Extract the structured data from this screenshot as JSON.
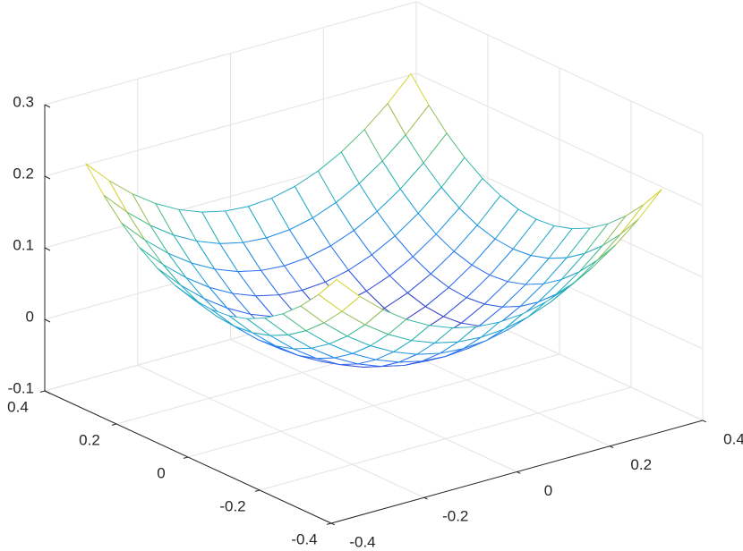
{
  "chart_data": {
    "type": "mesh",
    "colormap": "parula",
    "grid": true,
    "x": [
      -0.35,
      -0.3,
      -0.25,
      -0.2,
      -0.15,
      -0.1,
      -0.05,
      0,
      0.05,
      0.1,
      0.15,
      0.2,
      0.25,
      0.3,
      0.35
    ],
    "y": [
      -0.35,
      -0.3,
      -0.25,
      -0.2,
      -0.15,
      -0.1,
      -0.05,
      0,
      0.05,
      0.1,
      0.15,
      0.2,
      0.25,
      0.3,
      0.35
    ],
    "z": [
      [
        0.22,
        0.1875,
        0.16,
        0.1375,
        0.12,
        0.1075,
        0.1,
        0.0975,
        0.1,
        0.1075,
        0.12,
        0.1375,
        0.16,
        0.1875,
        0.22
      ],
      [
        0.1875,
        0.155,
        0.1275,
        0.105,
        0.0875,
        0.075,
        0.0675,
        0.065,
        0.0675,
        0.075,
        0.0875,
        0.105,
        0.1275,
        0.155,
        0.1875
      ],
      [
        0.16,
        0.1275,
        0.1,
        0.0775,
        0.06,
        0.0475,
        0.04,
        0.0375,
        0.04,
        0.0475,
        0.06,
        0.0775,
        0.1,
        0.1275,
        0.16
      ],
      [
        0.1375,
        0.105,
        0.0775,
        0.055,
        0.0375,
        0.025,
        0.0175,
        0.015,
        0.0175,
        0.025,
        0.0375,
        0.055,
        0.0775,
        0.105,
        0.1375
      ],
      [
        0.12,
        0.0875,
        0.06,
        0.0375,
        0.02,
        0.0075,
        0,
        -0.0025,
        0,
        0.0075,
        0.02,
        0.0375,
        0.06,
        0.0875,
        0.12
      ],
      [
        0.1075,
        0.075,
        0.0475,
        0.025,
        0.0075,
        -0.005,
        -0.0125,
        -0.015,
        -0.0125,
        -0.005,
        0.0075,
        0.025,
        0.0475,
        0.075,
        0.1075
      ],
      [
        0.1,
        0.0675,
        0.04,
        0.0175,
        0,
        -0.0125,
        -0.02,
        -0.0225,
        -0.02,
        -0.0125,
        0,
        0.0175,
        0.04,
        0.0675,
        0.1
      ],
      [
        0.0975,
        0.065,
        0.0375,
        0.015,
        -0.0025,
        -0.015,
        -0.0225,
        -0.025,
        -0.0225,
        -0.015,
        -0.0025,
        0.015,
        0.0375,
        0.065,
        0.0975
      ],
      [
        0.1,
        0.0675,
        0.04,
        0.0175,
        0,
        -0.0125,
        -0.02,
        -0.0225,
        -0.02,
        -0.0125,
        0,
        0.0175,
        0.04,
        0.0675,
        0.1
      ],
      [
        0.1075,
        0.075,
        0.0475,
        0.025,
        0.0075,
        -0.005,
        -0.0125,
        -0.015,
        -0.0125,
        -0.005,
        0.0075,
        0.025,
        0.0475,
        0.075,
        0.1075
      ],
      [
        0.12,
        0.0875,
        0.06,
        0.0375,
        0.02,
        0.0075,
        0,
        -0.0025,
        0,
        0.0075,
        0.02,
        0.0375,
        0.06,
        0.0875,
        0.12
      ],
      [
        0.1375,
        0.105,
        0.0775,
        0.055,
        0.0375,
        0.025,
        0.0175,
        0.015,
        0.0175,
        0.025,
        0.0375,
        0.055,
        0.0775,
        0.105,
        0.1375
      ],
      [
        0.16,
        0.1275,
        0.1,
        0.0775,
        0.06,
        0.0475,
        0.04,
        0.0375,
        0.04,
        0.0475,
        0.06,
        0.0775,
        0.1,
        0.1275,
        0.16
      ],
      [
        0.1875,
        0.155,
        0.1275,
        0.105,
        0.0875,
        0.075,
        0.0675,
        0.065,
        0.0675,
        0.075,
        0.0875,
        0.105,
        0.1275,
        0.155,
        0.1875
      ],
      [
        0.22,
        0.1875,
        0.16,
        0.1375,
        0.12,
        0.1075,
        0.1,
        0.0975,
        0.1,
        0.1075,
        0.12,
        0.1375,
        0.16,
        0.1875,
        0.22
      ]
    ],
    "xlim": [
      -0.4,
      0.4
    ],
    "ylim": [
      -0.4,
      0.4
    ],
    "zlim": [
      -0.1,
      0.3
    ],
    "xticks": [
      -0.4,
      -0.2,
      0,
      0.2,
      0.4
    ],
    "yticks": [
      -0.4,
      -0.2,
      0,
      0.2,
      0.4
    ],
    "zticks": [
      -0.1,
      0,
      0.1,
      0.2,
      0.3
    ]
  }
}
